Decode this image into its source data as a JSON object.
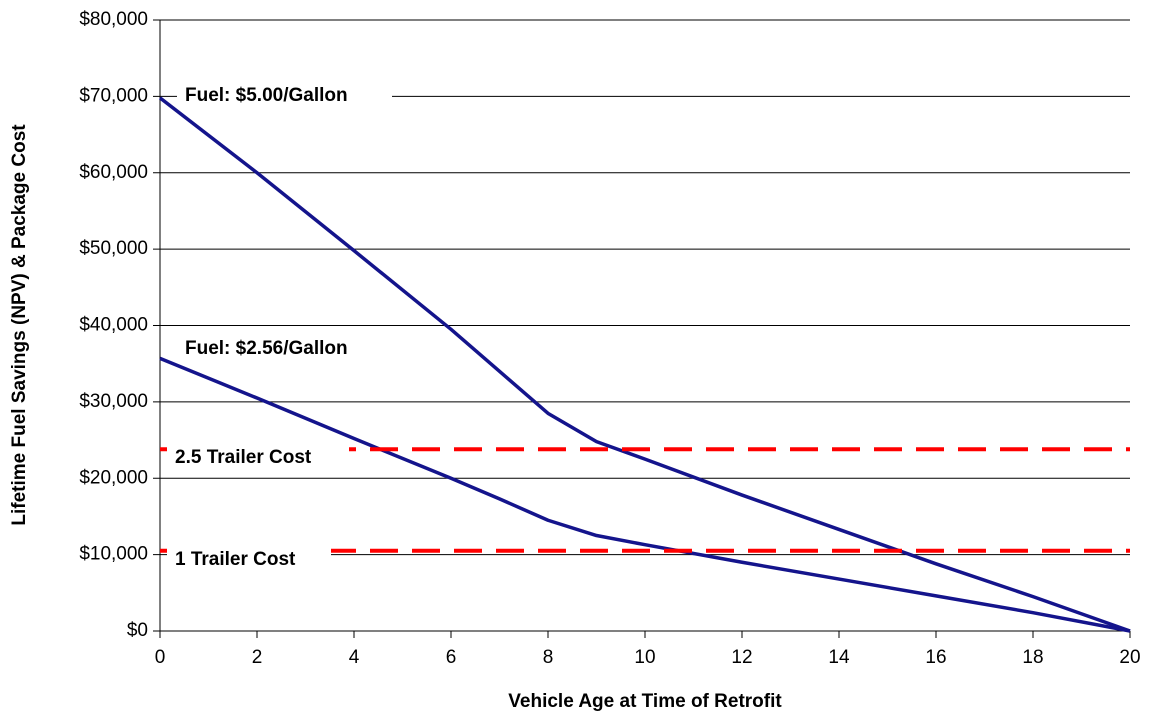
{
  "chart_data": {
    "type": "line",
    "x_label": "Vehicle Age at Time of Retrofit",
    "y_label": "Lifetime Fuel Savings (NPV) & Package Cost",
    "x": [
      0,
      2,
      4,
      6,
      7,
      8,
      9,
      10,
      12,
      14,
      16,
      18,
      20
    ],
    "series": [
      {
        "name": "Fuel: $5.00/Gallon",
        "color": "#14148c",
        "values": [
          69800,
          60000,
          49800,
          39500,
          34000,
          28500,
          24800,
          22500,
          17800,
          13300,
          8800,
          4500,
          0
        ]
      },
      {
        "name": "Fuel: $2.56/Gallon",
        "color": "#14148c",
        "values": [
          35700,
          30500,
          25200,
          20000,
          17300,
          14500,
          12500,
          11300,
          9000,
          6800,
          4600,
          2400,
          0
        ]
      }
    ],
    "reference_lines": [
      {
        "name": "2.5 Trailer Cost",
        "value": 23800,
        "color": "#ff0000"
      },
      {
        "name": "1 Trailer Cost",
        "value": 10500,
        "color": "#ff0000"
      }
    ],
    "xlim": [
      0,
      20
    ],
    "xticks": [
      0,
      2,
      4,
      6,
      8,
      10,
      12,
      14,
      16,
      18,
      20
    ],
    "ylim": [
      0,
      80000
    ],
    "yticks": [
      {
        "value": 0,
        "label": "$0"
      },
      {
        "value": 10000,
        "label": "$10,000"
      },
      {
        "value": 20000,
        "label": "$20,000"
      },
      {
        "value": 30000,
        "label": "$30,000"
      },
      {
        "value": 40000,
        "label": "$40,000"
      },
      {
        "value": 50000,
        "label": "$50,000"
      },
      {
        "value": 60000,
        "label": "$60,000"
      },
      {
        "value": 70000,
        "label": "$70,000"
      },
      {
        "value": 80000,
        "label": "$80,000"
      }
    ],
    "grid": true
  }
}
